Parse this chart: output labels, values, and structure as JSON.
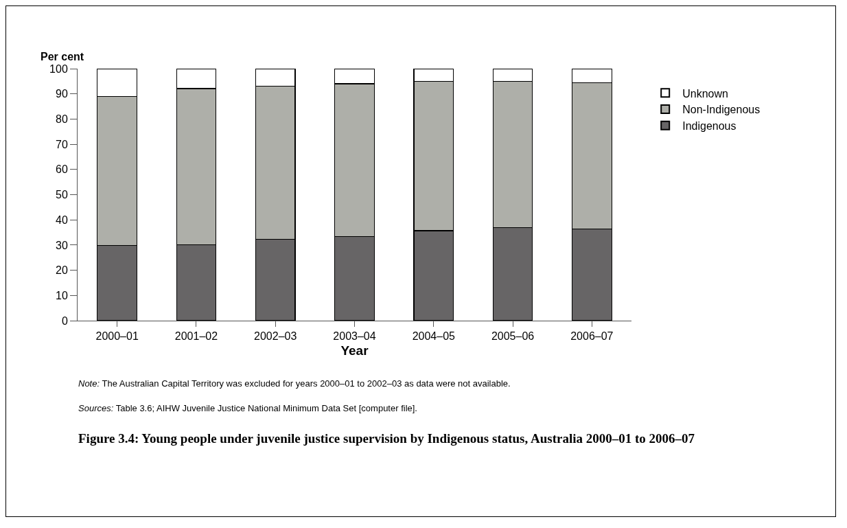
{
  "chart_data": {
    "type": "bar",
    "stacked": true,
    "title": "Figure 3.4: Young people under juvenile justice supervision by Indigenous status, Australia 2000–01 to 2006–07",
    "xlabel": "Year",
    "ylabel": "Per cent",
    "categories": [
      "2000–01",
      "2001–02",
      "2002–03",
      "2003–04",
      "2004–05",
      "2005–06",
      "2006–07"
    ],
    "series": [
      {
        "name": "Indigenous",
        "color": "#676566",
        "values": [
          29.8,
          30.2,
          32.2,
          33.3,
          35.7,
          37.0,
          36.3
        ]
      },
      {
        "name": "Non-Indigenous",
        "color": "#aeafa9",
        "values": [
          59.2,
          61.9,
          60.8,
          60.7,
          59.3,
          58.0,
          58.1
        ]
      },
      {
        "name": "Unknown",
        "color": "#ffffff",
        "values": [
          11.0,
          7.9,
          7.0,
          6.0,
          5.0,
          5.0,
          5.6
        ]
      }
    ],
    "ylim": [
      0,
      100
    ],
    "yticks": [
      0,
      10,
      20,
      30,
      40,
      50,
      60,
      70,
      80,
      90,
      100
    ],
    "grid": false,
    "legend": "right",
    "annotations": [
      "Note: The Australian Capital Territory was excluded for years 2000–01 to 2002–03 as data were not available.",
      "Sources: Table 3.6; AIHW Juvenile Justice National Minimum Data Set [computer file]."
    ]
  }
}
